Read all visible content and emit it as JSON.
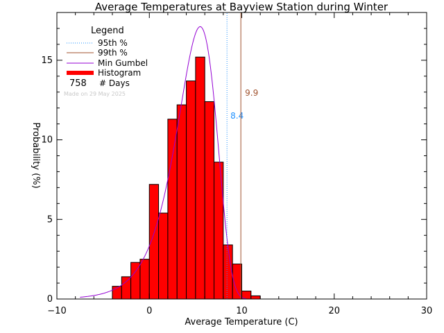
{
  "chart_data": {
    "type": "bar",
    "title": "Average Temperatures at Bayview Station during Winter",
    "xlabel": "Average Temperature (C)",
    "ylabel": "Probability (%)",
    "xlim": [
      -10,
      30
    ],
    "ylim": [
      0,
      18
    ],
    "x_ticks": [
      "−10",
      "0",
      "10",
      "20",
      "30"
    ],
    "y_ticks": [
      "0",
      "5",
      "10",
      "15"
    ],
    "histogram": {
      "name": "Histogram",
      "bin_width": 1,
      "bin_starts": [
        -4,
        -3,
        -2,
        -1,
        0,
        1,
        2,
        3,
        4,
        5,
        6,
        7,
        8,
        9,
        10,
        11
      ],
      "values": [
        0.8,
        1.4,
        2.3,
        2.5,
        7.2,
        5.4,
        11.3,
        12.2,
        13.7,
        15.2,
        12.4,
        8.6,
        3.4,
        2.2,
        0.5,
        0.2
      ],
      "color": "#ff0000"
    },
    "gumbel": {
      "name": "Min Gumbel",
      "mode": 5.5,
      "beta": 2.15,
      "x_range": [
        -7.5,
        10.5
      ],
      "color": "#9400d3"
    },
    "percentiles": [
      {
        "name": "95th %",
        "value": 8.4,
        "label": "8.4",
        "color": "#1e90ff",
        "style": "dotted"
      },
      {
        "name": "99th %",
        "value": 9.9,
        "label": "9.9",
        "color": "#a0522d",
        "style": "solid"
      }
    ],
    "legend": {
      "title": "Legend",
      "placement": "top-left",
      "days_count": "758",
      "days_label": "# Days"
    },
    "watermark": "Made on 29 May 2025",
    "grid": false
  }
}
